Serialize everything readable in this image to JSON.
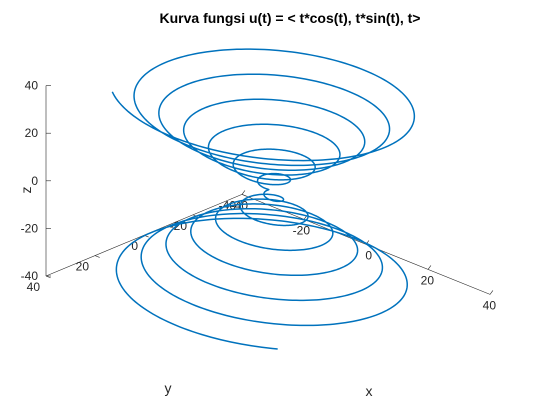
{
  "chart_data": {
    "type": "line",
    "subtype": "3d-parametric-curve",
    "title": "Kurva fungsi u(t) = < t*cos(t), t*sin(t), t>",
    "xlabel": "x",
    "ylabel": "y",
    "zlabel": "z",
    "xlim": [
      -40,
      40
    ],
    "ylim": [
      -40,
      40
    ],
    "zlim": [
      -40,
      40
    ],
    "xticks": [
      "-40",
      "-20",
      "0",
      "20",
      "40"
    ],
    "yticks": [
      "-40",
      "-20",
      "0",
      "20",
      "40"
    ],
    "zticks": [
      "-40",
      "-20",
      "0",
      "20",
      "40"
    ],
    "grid": false,
    "t_range": [
      -40,
      40
    ],
    "series": [
      {
        "x_expr": "t*cos(t)",
        "y_expr": "t*sin(t)",
        "z_expr": "t",
        "color": "#0072BD"
      }
    ]
  }
}
